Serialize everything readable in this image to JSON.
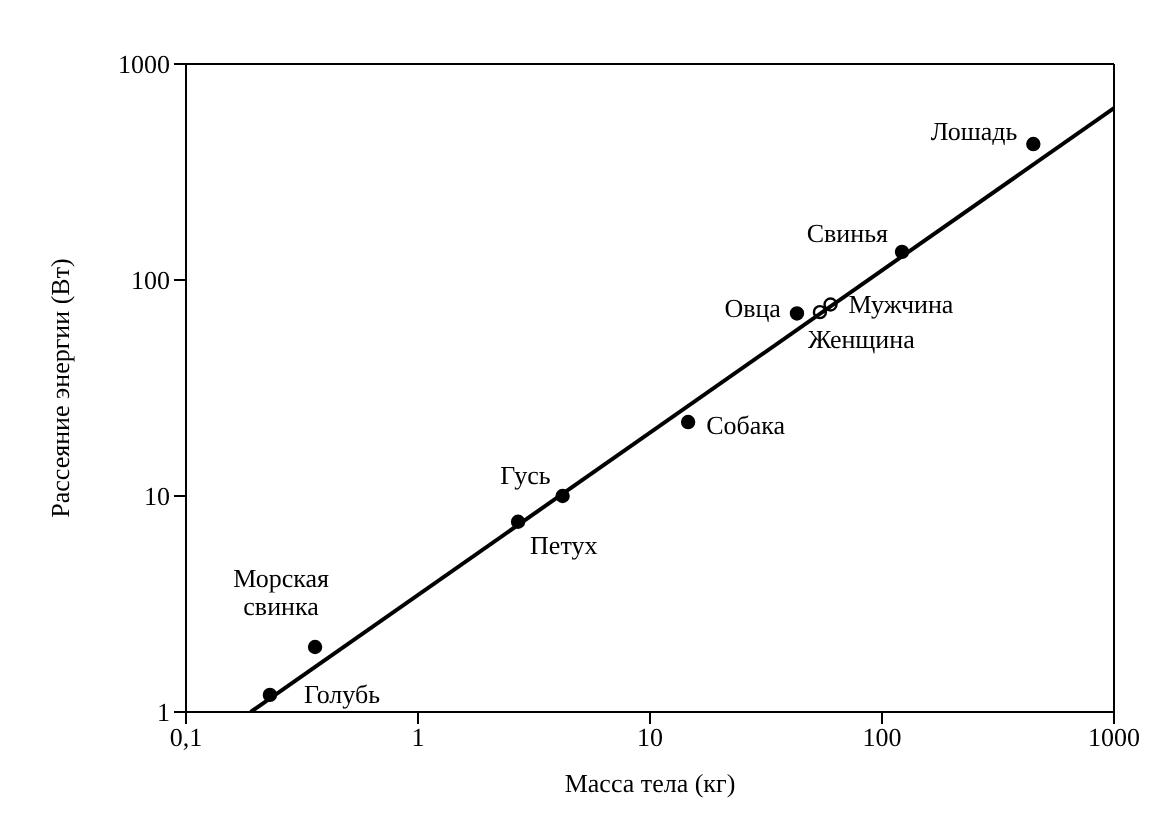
{
  "chart_data": {
    "type": "scatter",
    "xlabel": "Масса тела (кг)",
    "ylabel": "Рассеяние энергии (Вт)",
    "log": "xy",
    "xlim": [
      0.1,
      1000
    ],
    "ylim": [
      1,
      1000
    ],
    "xticks": [
      {
        "value": 0.1,
        "label": "0,1"
      },
      1,
      10,
      100,
      1000
    ],
    "yticks": [
      1,
      10,
      100,
      1000
    ],
    "legend": false,
    "series": [
      {
        "marker": "circle",
        "color": "#000000",
        "x": [
          0.23,
          0.36,
          2.7,
          4.2,
          14.6,
          43,
          122,
          449
        ],
        "values": [
          1.2,
          2,
          7.6,
          10,
          22,
          70,
          135,
          426
        ]
      },
      {
        "marker": "circle",
        "color": "#000000",
        "x": [
          54,
          60
        ],
        "values": [
          71,
          77
        ]
      },
      {
        "type": "line",
        "marker": "none",
        "color": "#000000",
        "x": [
          0.19,
          1000
        ],
        "values": [
          1,
          625
        ]
      }
    ],
    "annotations": [
      {
        "text": "Голубь",
        "x": 0.23,
        "y": 1.2
      },
      {
        "text": "Морская свинка",
        "x": 0.36,
        "y": 2
      },
      {
        "text": "Петух",
        "x": 2.7,
        "y": 7.6
      },
      {
        "text": "Гусь",
        "x": 4.2,
        "y": 10
      },
      {
        "text": "Собака",
        "x": 14.6,
        "y": 22
      },
      {
        "text": "Овца",
        "x": 43,
        "y": 70
      },
      {
        "text": "Женщина",
        "x": 54,
        "y": 71
      },
      {
        "text": "Мужчина",
        "x": 60,
        "y": 77
      },
      {
        "text": "Свинья",
        "x": 122,
        "y": 135
      },
      {
        "text": "Лошадь",
        "x": 449,
        "y": 426
      }
    ]
  }
}
